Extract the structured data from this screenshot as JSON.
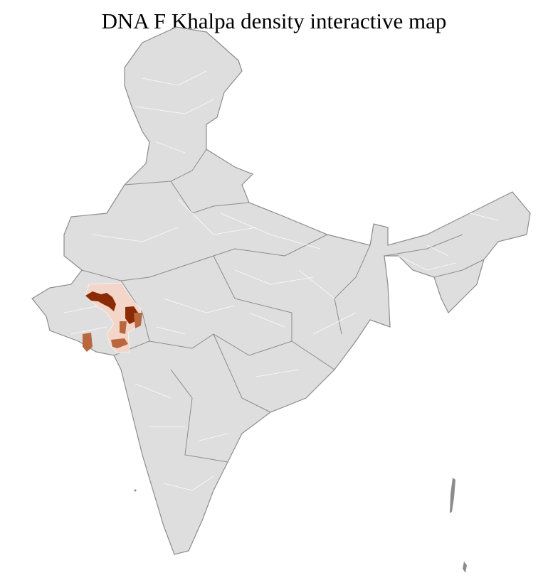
{
  "title": "DNA F Khalpa density interactive map",
  "colors": {
    "base": "#dedede",
    "border_state": "#8c8c8c",
    "border_district": "#ffffff",
    "low": "#f3d6c9",
    "mid": "#b8673f",
    "high": "#8a2b05"
  }
}
